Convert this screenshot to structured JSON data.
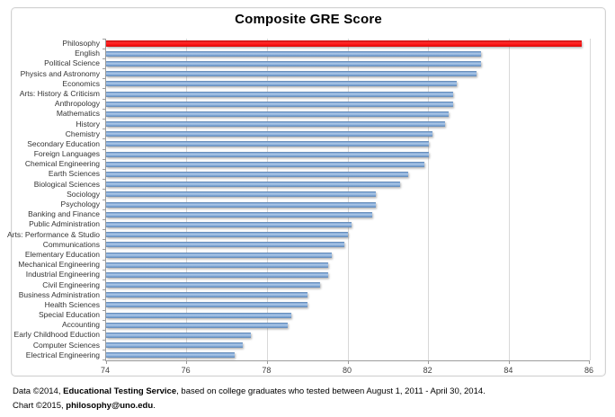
{
  "chart_data": {
    "type": "bar",
    "orientation": "horizontal",
    "title": "Composite GRE Score",
    "categories": [
      "Philosophy",
      "English",
      "Political Science",
      "Physics and Astronomy",
      "Economics",
      "Arts: History & Criticism",
      "Anthropology",
      "Mathematics",
      "History",
      "Chemistry",
      "Secondary Education",
      "Foreign Languages",
      "Chemical Engineering",
      "Earth Sciences",
      "Biological Sciences",
      "Sociology",
      "Psychology",
      "Banking and Finance",
      "Public Administration",
      "Arts: Performance & Studio",
      "Communications",
      "Elementary Education",
      "Mechanical Engineering",
      "Industrial Engineering",
      "Civil Engineering",
      "Business Administration",
      "Health Sciences",
      "Special Education",
      "Accounting",
      "Early Childhood Eduction",
      "Computer Sciences",
      "Electrical Engineering"
    ],
    "values": [
      85.8,
      83.3,
      83.3,
      83.2,
      82.7,
      82.6,
      82.6,
      82.5,
      82.4,
      82.1,
      82.0,
      82.0,
      81.9,
      81.5,
      81.3,
      80.7,
      80.7,
      80.6,
      80.1,
      80.0,
      79.9,
      79.6,
      79.5,
      79.5,
      79.3,
      79.0,
      79.0,
      78.6,
      78.5,
      77.6,
      77.4,
      77.2
    ],
    "highlight": {
      "category": "Philosophy",
      "index": 0,
      "color": "#fe0b0b"
    },
    "bar_color": "#6e9cd2",
    "xlabel": "",
    "ylabel": "",
    "xlim": [
      74,
      86
    ],
    "xticks": [
      74,
      76,
      78,
      80,
      82,
      84,
      86
    ],
    "grid": true,
    "legend": false
  },
  "footer": {
    "line1_prefix": "Data ©2014, ",
    "line1_bold": "Educational Testing Service",
    "line1_suffix": ", based on college graduates who tested between August 1, 2011 - April 30, 2014.",
    "line2_prefix": "Chart ©2015, ",
    "line2_bold": "philosophy@uno.edu",
    "line2_suffix": "."
  }
}
